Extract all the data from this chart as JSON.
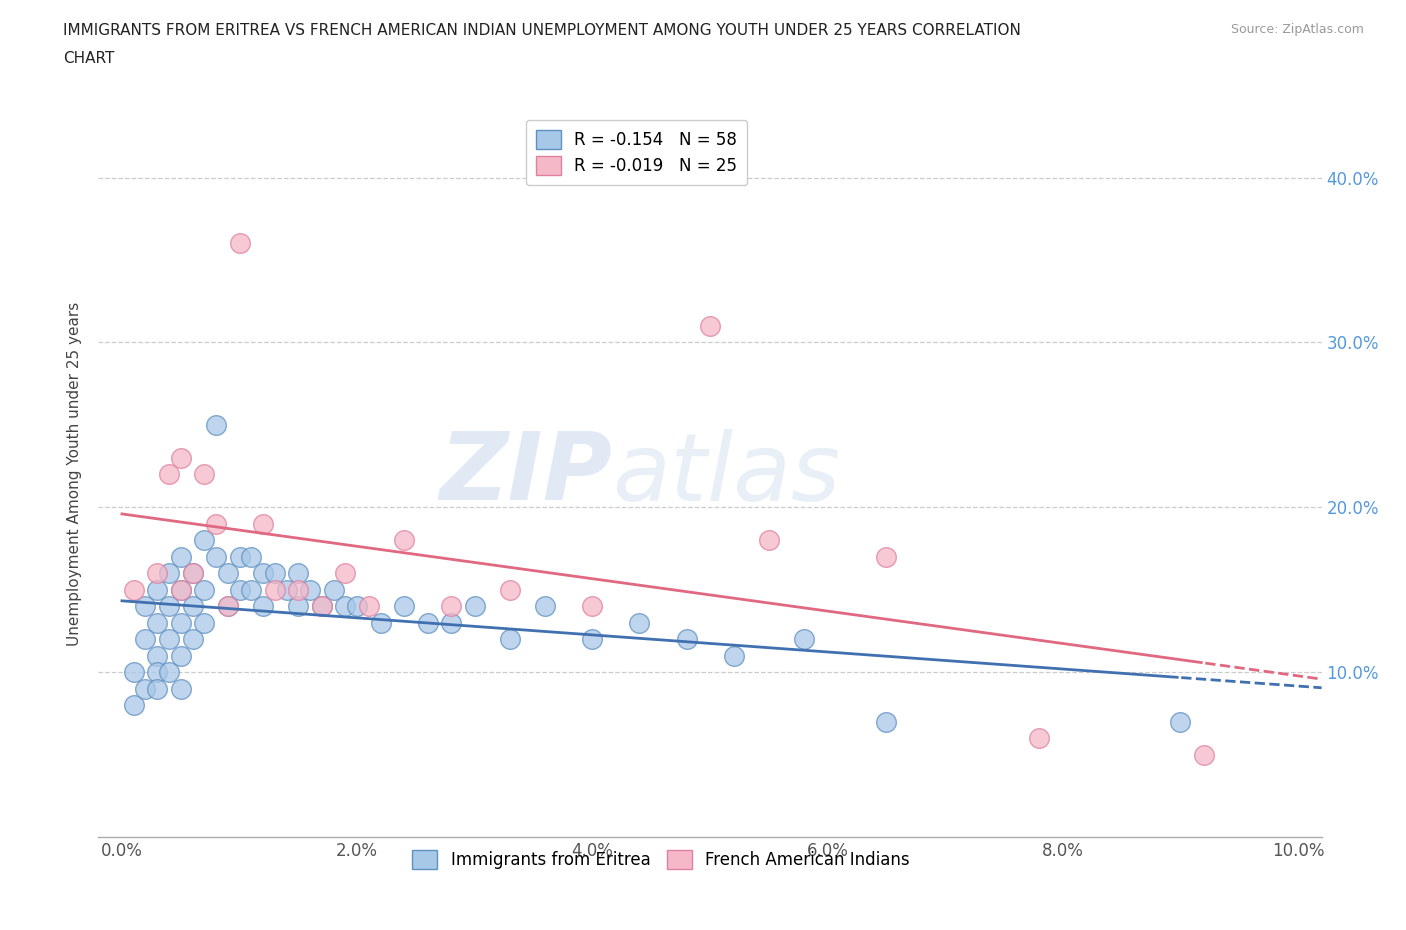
{
  "title_line1": "IMMIGRANTS FROM ERITREA VS FRENCH AMERICAN INDIAN UNEMPLOYMENT AMONG YOUTH UNDER 25 YEARS CORRELATION",
  "title_line2": "CHART",
  "source": "Source: ZipAtlas.com",
  "ylabel_label": "Unemployment Among Youth under 25 years",
  "legend_label1": "Immigrants from Eritrea",
  "legend_label2": "French American Indians",
  "r1": -0.154,
  "n1": 58,
  "r2": -0.019,
  "n2": 25,
  "color_blue": "#a8c8e8",
  "color_pink": "#f4b8c8",
  "color_blue_edge": "#6090c0",
  "color_pink_edge": "#e080a0",
  "color_line_blue": "#4070b0",
  "color_line_pink": "#e06880",
  "watermark_zip": "ZIP",
  "watermark_atlas": "atlas",
  "blue_x": [
    0.001,
    0.001,
    0.002,
    0.002,
    0.002,
    0.003,
    0.003,
    0.003,
    0.003,
    0.003,
    0.004,
    0.004,
    0.004,
    0.004,
    0.005,
    0.005,
    0.005,
    0.005,
    0.005,
    0.006,
    0.006,
    0.006,
    0.007,
    0.007,
    0.007,
    0.008,
    0.008,
    0.009,
    0.009,
    0.01,
    0.01,
    0.011,
    0.011,
    0.012,
    0.012,
    0.013,
    0.014,
    0.015,
    0.015,
    0.016,
    0.017,
    0.018,
    0.019,
    0.02,
    0.022,
    0.024,
    0.026,
    0.028,
    0.03,
    0.033,
    0.036,
    0.04,
    0.044,
    0.048,
    0.052,
    0.058,
    0.065,
    0.09
  ],
  "blue_y": [
    0.1,
    0.08,
    0.14,
    0.12,
    0.09,
    0.15,
    0.13,
    0.11,
    0.1,
    0.09,
    0.16,
    0.14,
    0.12,
    0.1,
    0.17,
    0.15,
    0.13,
    0.11,
    0.09,
    0.16,
    0.14,
    0.12,
    0.18,
    0.15,
    0.13,
    0.25,
    0.17,
    0.16,
    0.14,
    0.17,
    0.15,
    0.17,
    0.15,
    0.16,
    0.14,
    0.16,
    0.15,
    0.16,
    0.14,
    0.15,
    0.14,
    0.15,
    0.14,
    0.14,
    0.13,
    0.14,
    0.13,
    0.13,
    0.14,
    0.12,
    0.14,
    0.12,
    0.13,
    0.12,
    0.11,
    0.12,
    0.07,
    0.07
  ],
  "pink_x": [
    0.001,
    0.003,
    0.004,
    0.005,
    0.005,
    0.006,
    0.007,
    0.008,
    0.009,
    0.01,
    0.012,
    0.013,
    0.015,
    0.017,
    0.019,
    0.021,
    0.024,
    0.028,
    0.033,
    0.04,
    0.05,
    0.055,
    0.065,
    0.078,
    0.092
  ],
  "pink_y": [
    0.15,
    0.16,
    0.22,
    0.23,
    0.15,
    0.16,
    0.22,
    0.19,
    0.14,
    0.36,
    0.19,
    0.15,
    0.15,
    0.14,
    0.16,
    0.14,
    0.18,
    0.14,
    0.15,
    0.14,
    0.31,
    0.18,
    0.17,
    0.06,
    0.05
  ],
  "xlim": [
    -0.002,
    0.102
  ],
  "ylim": [
    0.0,
    0.44
  ],
  "x_ticks": [
    0.0,
    0.02,
    0.04,
    0.06,
    0.08,
    0.1
  ],
  "y_ticks": [
    0.1,
    0.2,
    0.3,
    0.4
  ],
  "y_tick_labels": [
    "10.0%",
    "20.0%",
    "30.0%",
    "40.0%"
  ],
  "x_tick_labels": [
    "0.0%",
    "2.0%",
    "4.0%",
    "6.0%",
    "8.0%",
    "10.0%"
  ]
}
